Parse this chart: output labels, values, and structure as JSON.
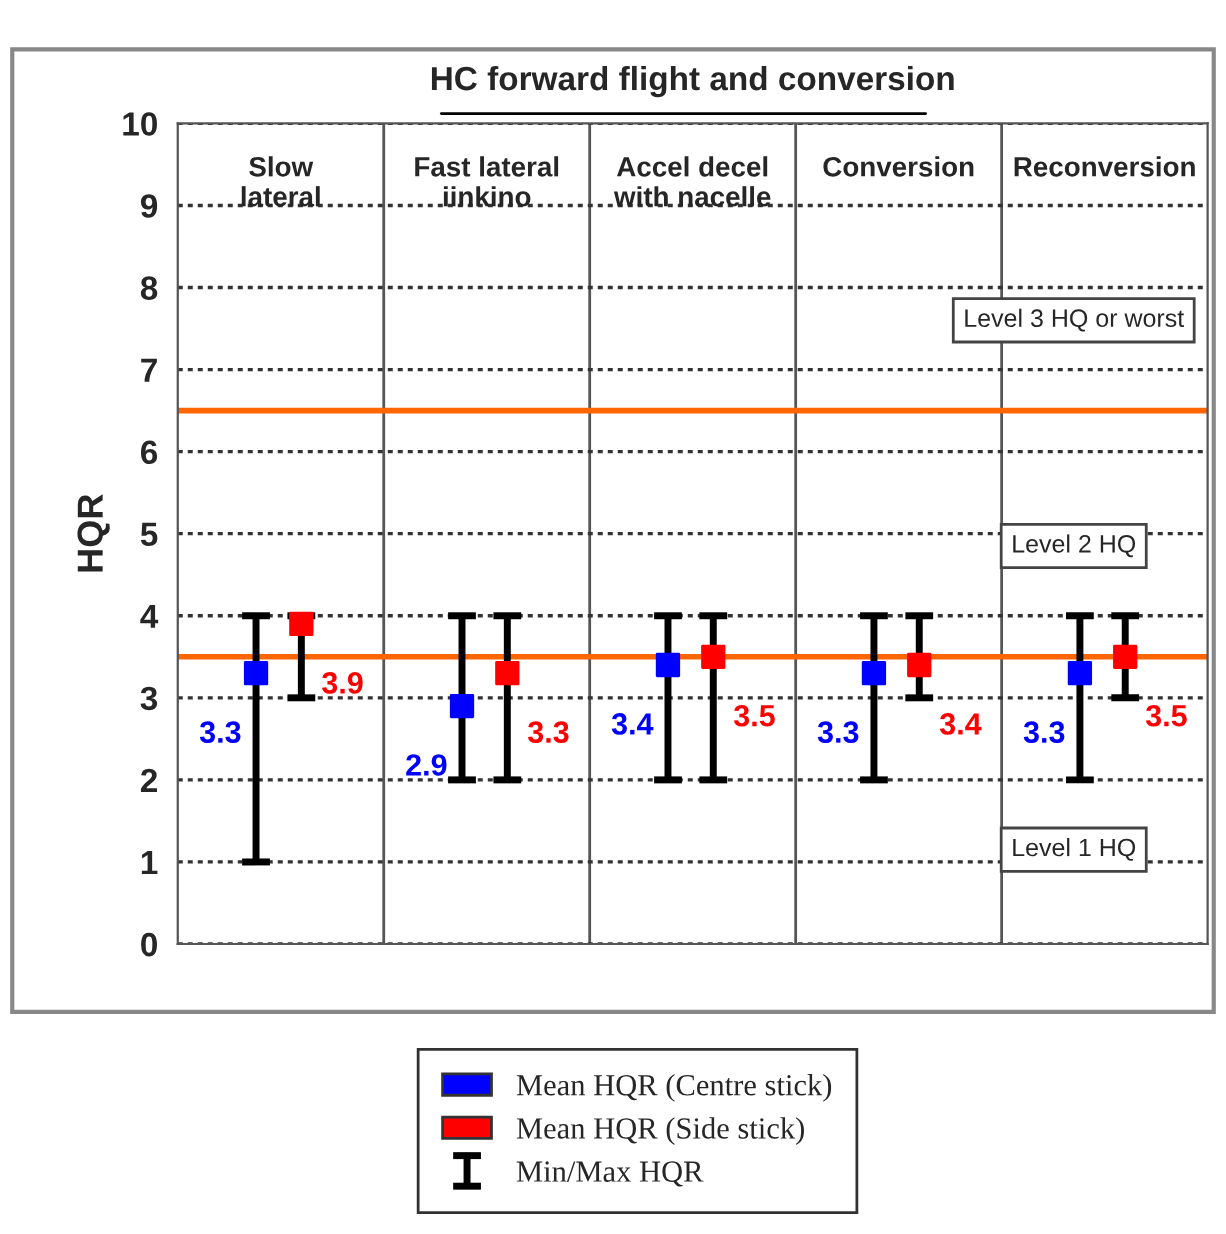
{
  "chart_data": {
    "type": "scatter",
    "title": "HC forward flight and conversion",
    "ylabel": "HQR",
    "categories": [
      "Slow\nlateral",
      "Fast lateral\niinkino",
      "Accel decel\nwith nacelle",
      "Conversion",
      "Reconversion"
    ],
    "series": [
      {
        "name": "Mean HQR (Centre stick)",
        "color": "#0000ff",
        "values": [
          3.3,
          2.9,
          3.4,
          3.3,
          3.3
        ],
        "errors": [
          [
            1,
            4
          ],
          [
            2,
            4
          ],
          [
            2,
            4
          ],
          [
            2,
            4
          ],
          [
            2,
            4
          ]
        ]
      },
      {
        "name": "Mean HQR (Side stick)",
        "color": "#ff0000",
        "values": [
          3.9,
          3.3,
          3.5,
          3.4,
          3.5
        ],
        "errors": [
          [
            3,
            4
          ],
          [
            2,
            4
          ],
          [
            2,
            4
          ],
          [
            3,
            4
          ],
          [
            3,
            4
          ]
        ]
      }
    ],
    "ylim": [
      0,
      10
    ],
    "yticks": [
      0,
      1,
      2,
      3,
      4,
      5,
      6,
      7,
      8,
      9,
      10
    ],
    "ref_lines": [
      {
        "axis": "y",
        "value": 6.5,
        "color": "#ff6600"
      },
      {
        "axis": "y",
        "value": 3.5,
        "color": "#ff6600"
      }
    ],
    "annotations": [
      "Level 3 HQ or worst",
      "Level 2 HQ",
      "Level 1 HQ",
      "Min/Max HQR"
    ],
    "data_labels": true,
    "marker": "square",
    "grid": true,
    "legend": "bottom"
  }
}
